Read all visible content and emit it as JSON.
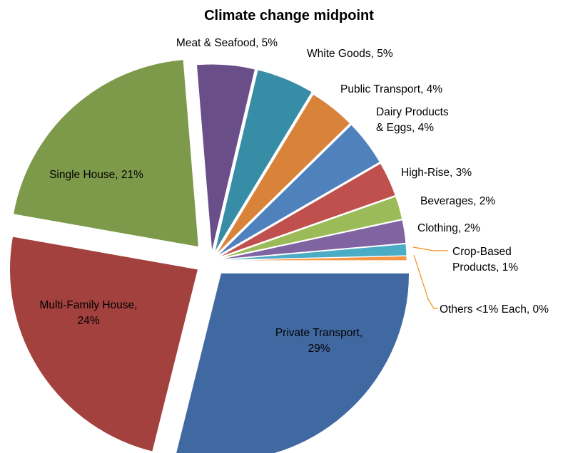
{
  "chart_data": {
    "type": "pie",
    "title": "Climate change midpoint",
    "slices": [
      {
        "name": "Private Transport",
        "value": 29,
        "color": "#4169a1",
        "label_lines": [
          "Private Transport,",
          "29%"
        ]
      },
      {
        "name": "Multi-Family House",
        "value": 24,
        "color": "#a2413e",
        "label_lines": [
          "Multi-Family House,",
          "24%"
        ]
      },
      {
        "name": "Single House",
        "value": 21,
        "color": "#7d9a4b",
        "label_lines": [
          "Single House, 21%"
        ]
      },
      {
        "name": "Meat & Seafood",
        "value": 5,
        "color": "#6a4e89",
        "label_lines": [
          "Meat & Seafood, 5%"
        ]
      },
      {
        "name": "White Goods",
        "value": 5,
        "color": "#378da5",
        "label_lines": [
          "White Goods, 5%"
        ]
      },
      {
        "name": "Public Transport",
        "value": 4,
        "color": "#d8823a",
        "label_lines": [
          "Public Transport, 4%"
        ]
      },
      {
        "name": "Dairy Products & Eggs",
        "value": 4,
        "color": "#4f81bd",
        "label_lines": [
          "Dairy Products",
          "& Eggs, 4%"
        ]
      },
      {
        "name": "High-Rise",
        "value": 3,
        "color": "#c0504d",
        "label_lines": [
          "High-Rise, 3%"
        ]
      },
      {
        "name": "Beverages",
        "value": 2,
        "color": "#9bbb59",
        "label_lines": [
          "Beverages, 2%"
        ]
      },
      {
        "name": "Clothing",
        "value": 2,
        "color": "#8064a2",
        "label_lines": [
          "Clothing, 2%"
        ]
      },
      {
        "name": "Crop-Based Products",
        "value": 1,
        "color": "#4bacc6",
        "label_lines": [
          "Crop-Based",
          "Products, 1%"
        ]
      },
      {
        "name": "Others <1% Each",
        "value": 0.4,
        "color": "#f79646",
        "label_lines": [
          "Others <1% Each, 0%"
        ]
      }
    ]
  }
}
